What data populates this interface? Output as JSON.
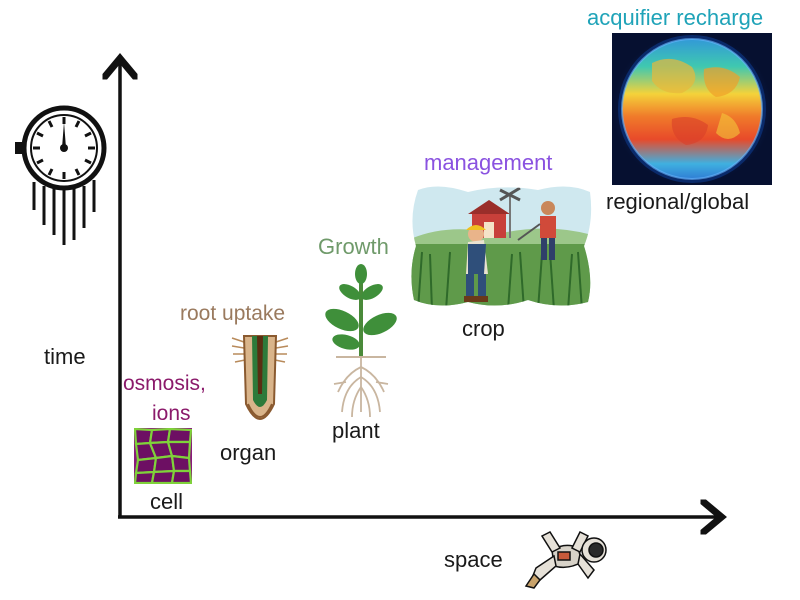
{
  "axes": {
    "y_label": "time",
    "x_label": "space"
  },
  "scales": [
    {
      "process": "osmosis,",
      "process_line2": "ions",
      "level": "cell"
    },
    {
      "process": "root uptake",
      "level": "organ"
    },
    {
      "process": "Growth",
      "level": "plant"
    },
    {
      "process": "management",
      "level": "crop"
    },
    {
      "process": "acquifier recharge",
      "level": "regional/global"
    }
  ],
  "colors": {
    "axis": "#111111",
    "osmosis": "#8b1a6b",
    "root_uptake": "#9a7a5e",
    "growth": "#6f9a6a",
    "management": "#8a52e0",
    "acquifier": "#1fa3b8",
    "level_text": "#1a1a1a"
  },
  "icons": {
    "time": "stopwatch-icon",
    "space": "astronaut-icon",
    "cell": "cell-tissue-icon",
    "organ": "root-tip-icon",
    "plant": "seedling-icon",
    "crop": "farmers-field-icon",
    "global": "earth-globe-icon"
  }
}
